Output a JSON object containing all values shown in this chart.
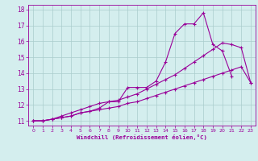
{
  "xlabel": "Windchill (Refroidissement éolien,°C)",
  "x_values": [
    0,
    1,
    2,
    3,
    4,
    5,
    6,
    7,
    8,
    9,
    10,
    11,
    12,
    13,
    14,
    15,
    16,
    17,
    18,
    19,
    20,
    21,
    22,
    23
  ],
  "line1_x": [
    0,
    1,
    2,
    3,
    4,
    5,
    6,
    7,
    8,
    9,
    10,
    11,
    12,
    13,
    14,
    15,
    16,
    17,
    18,
    19,
    20,
    21
  ],
  "line1_y": [
    11.0,
    11.0,
    11.1,
    11.2,
    11.3,
    11.5,
    11.6,
    11.8,
    12.2,
    12.2,
    13.1,
    13.1,
    13.1,
    13.5,
    14.7,
    16.5,
    17.1,
    17.1,
    17.8,
    15.8,
    15.4,
    13.8
  ],
  "line2_x": [
    0,
    1,
    2,
    3,
    4,
    5,
    6,
    7,
    8,
    9,
    10,
    11,
    12,
    13,
    14,
    15,
    16,
    17,
    18,
    19,
    20,
    21,
    22,
    23
  ],
  "line2_y": [
    11.0,
    11.0,
    11.1,
    11.3,
    11.5,
    11.7,
    11.9,
    12.1,
    12.2,
    12.3,
    12.5,
    12.7,
    13.0,
    13.3,
    13.6,
    13.9,
    14.3,
    14.7,
    15.1,
    15.5,
    15.9,
    15.8,
    15.6,
    13.4
  ],
  "line3_x": [
    0,
    1,
    2,
    3,
    4,
    5,
    6,
    7,
    8,
    9,
    10,
    11,
    12,
    13,
    14,
    15,
    16,
    17,
    18,
    19,
    20,
    21,
    22,
    23
  ],
  "line3_y": [
    11.0,
    11.0,
    11.1,
    11.2,
    11.3,
    11.5,
    11.6,
    11.7,
    11.8,
    11.9,
    12.1,
    12.2,
    12.4,
    12.6,
    12.8,
    13.0,
    13.2,
    13.4,
    13.6,
    13.8,
    14.0,
    14.2,
    14.4,
    13.4
  ],
  "line_color": "#990099",
  "bg_color": "#d4eeee",
  "grid_color": "#aacccc",
  "ylim": [
    10.7,
    18.3
  ],
  "xlim": [
    -0.5,
    23.5
  ],
  "yticks": [
    11,
    12,
    13,
    14,
    15,
    16,
    17,
    18
  ],
  "xticks": [
    0,
    1,
    2,
    3,
    4,
    5,
    6,
    7,
    8,
    9,
    10,
    11,
    12,
    13,
    14,
    15,
    16,
    17,
    18,
    19,
    20,
    21,
    22,
    23
  ]
}
